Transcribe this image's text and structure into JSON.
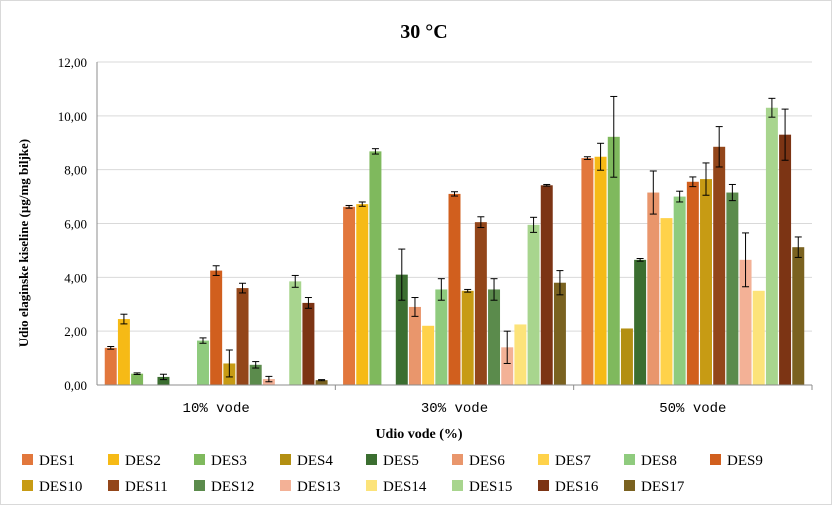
{
  "chart_data": {
    "type": "bar",
    "title": "30 °C",
    "xlabel": "Udio  vode  (%)",
    "ylabel": "Udio  elaginske kiseline (µg/mg biljke)",
    "ylim": [
      0,
      12
    ],
    "yticks": [
      "0,00",
      "2,00",
      "4,00",
      "6,00",
      "8,00",
      "10,00",
      "12,00"
    ],
    "grid": true,
    "legend_position": "bottom",
    "categories": [
      "10% vode",
      "30% vode",
      "50% vode"
    ],
    "series": [
      {
        "name": "DES1",
        "color": "#E2773C",
        "values": [
          1.38,
          6.62,
          8.43
        ],
        "errors": [
          0.05,
          0.05,
          0.05
        ]
      },
      {
        "name": "DES2",
        "color": "#F6BA16",
        "values": [
          2.45,
          6.72,
          8.48
        ],
        "errors": [
          0.18,
          0.08,
          0.5
        ]
      },
      {
        "name": "DES3",
        "color": "#7FB95D",
        "values": [
          0.42,
          8.68,
          9.22
        ],
        "errors": [
          0.03,
          0.1,
          1.5
        ]
      },
      {
        "name": "DES4",
        "color": "#B38F12",
        "values": [
          0.0,
          0.0,
          2.1
        ],
        "errors": [
          0,
          0,
          0
        ]
      },
      {
        "name": "DES5",
        "color": "#3B6E30",
        "values": [
          0.3,
          4.1,
          4.65
        ],
        "errors": [
          0.1,
          0.95,
          0.05
        ]
      },
      {
        "name": "DES6",
        "color": "#E9966C",
        "values": [
          0.0,
          2.9,
          7.15
        ],
        "errors": [
          0,
          0.35,
          0.8
        ]
      },
      {
        "name": "DES7",
        "color": "#FFD24A",
        "values": [
          0.0,
          2.2,
          6.2
        ],
        "errors": [
          0,
          0,
          0
        ]
      },
      {
        "name": "DES8",
        "color": "#8FCB7E",
        "values": [
          1.65,
          3.55,
          7.0
        ],
        "errors": [
          0.1,
          0.4,
          0.2
        ]
      },
      {
        "name": "DES9",
        "color": "#D15F1E",
        "values": [
          4.25,
          7.1,
          7.55
        ],
        "errors": [
          0.18,
          0.08,
          0.18
        ]
      },
      {
        "name": "DES10",
        "color": "#C79B14",
        "values": [
          0.8,
          3.5,
          7.65
        ],
        "errors": [
          0.5,
          0.05,
          0.6
        ]
      },
      {
        "name": "DES11",
        "color": "#93461A",
        "values": [
          3.6,
          6.05,
          8.85
        ],
        "errors": [
          0.18,
          0.2,
          0.75
        ]
      },
      {
        "name": "DES12",
        "color": "#5B8B4C",
        "values": [
          0.75,
          3.55,
          7.15
        ],
        "errors": [
          0.12,
          0.4,
          0.3
        ]
      },
      {
        "name": "DES13",
        "color": "#F3B196",
        "values": [
          0.22,
          1.4,
          4.65
        ],
        "errors": [
          0.1,
          0.6,
          1.0
        ]
      },
      {
        "name": "DES14",
        "color": "#FCE37A",
        "values": [
          0.0,
          2.25,
          3.5
        ],
        "errors": [
          0,
          0,
          0
        ]
      },
      {
        "name": "DES15",
        "color": "#A8D58E",
        "values": [
          3.85,
          5.95,
          10.3
        ],
        "errors": [
          0.22,
          0.28,
          0.35
        ]
      },
      {
        "name": "DES16",
        "color": "#7C3414",
        "values": [
          3.05,
          7.42,
          9.3
        ],
        "errors": [
          0.2,
          0.03,
          0.95
        ]
      },
      {
        "name": "DES17",
        "color": "#7A6220",
        "values": [
          0.18,
          3.8,
          5.12
        ],
        "errors": [
          0.02,
          0.45,
          0.38
        ]
      }
    ]
  }
}
